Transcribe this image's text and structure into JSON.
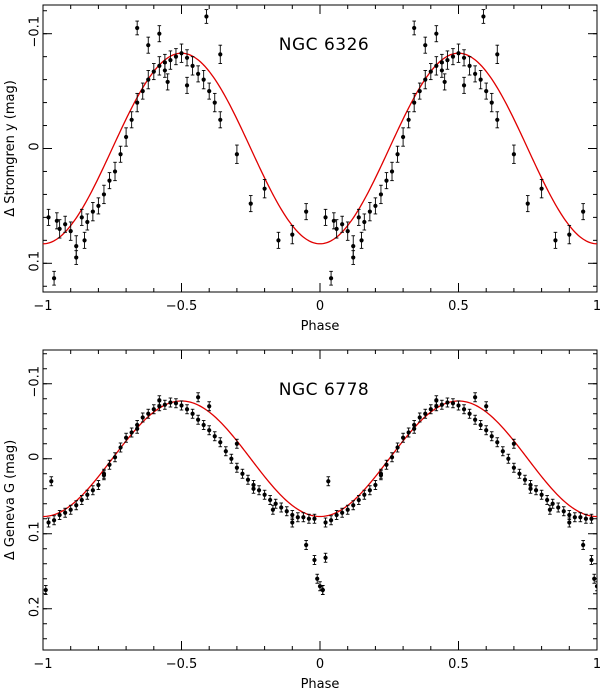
{
  "chart_data": [
    {
      "type": "scatter",
      "title": "NGC 6326",
      "xlabel": "Phase",
      "ylabel": "Δ Stromgren y (mag)",
      "xlim": [
        -1,
        1
      ],
      "ylim": [
        0.125,
        -0.125
      ],
      "xticks": [
        -1,
        -0.5,
        0,
        0.5,
        1
      ],
      "xtick_labels": [
        "−1",
        "−0.5",
        "0",
        "0.5",
        "1"
      ],
      "yticks": [
        -0.1,
        0,
        0.1
      ],
      "ytick_labels": [
        "−0.1",
        "0",
        "0.1"
      ],
      "model": {
        "type": "sinusoid",
        "mean": 0.0,
        "amplitude": 0.083,
        "phase_of_max_brightness": 0.5,
        "color": "#e00000"
      },
      "observations": {
        "x": [
          -0.98,
          -0.96,
          -0.94,
          -0.92,
          -0.9,
          -0.88,
          -0.86,
          -0.84,
          -0.82,
          -0.8,
          -0.78,
          -0.76,
          -0.74,
          -0.72,
          -0.7,
          -0.68,
          -0.66,
          -0.64,
          -0.62,
          -0.6,
          -0.58,
          -0.56,
          -0.54,
          -0.52,
          -0.5,
          -0.48,
          -0.46,
          -0.44,
          -0.42,
          -0.4,
          -0.38,
          -0.36,
          -0.3,
          -0.25,
          -0.2,
          -0.15,
          -0.1,
          -0.05,
          -0.66,
          -0.62,
          -0.58,
          -0.56,
          -0.48,
          -0.41,
          -0.36,
          -0.55,
          -0.95,
          -0.85,
          -0.88
        ],
        "y": [
          0.06,
          0.113,
          0.07,
          0.066,
          0.072,
          0.085,
          0.06,
          0.064,
          0.055,
          0.05,
          0.04,
          0.028,
          0.02,
          0.005,
          -0.01,
          -0.025,
          -0.04,
          -0.05,
          -0.06,
          -0.067,
          -0.072,
          -0.075,
          -0.077,
          -0.08,
          -0.083,
          -0.079,
          -0.072,
          -0.065,
          -0.06,
          -0.05,
          -0.04,
          -0.025,
          0.005,
          0.048,
          0.035,
          0.08,
          0.075,
          0.055,
          -0.105,
          -0.09,
          -0.1,
          -0.068,
          -0.055,
          -0.115,
          -0.082,
          -0.058,
          0.063,
          0.08,
          0.095
        ],
        "yerr": [
          0.007,
          0.006,
          0.008,
          0.007,
          0.008,
          0.009,
          0.007,
          0.007,
          0.008,
          0.007,
          0.008,
          0.007,
          0.008,
          0.007,
          0.008,
          0.007,
          0.008,
          0.007,
          0.008,
          0.007,
          0.008,
          0.007,
          0.008,
          0.007,
          0.008,
          0.007,
          0.008,
          0.007,
          0.008,
          0.007,
          0.008,
          0.007,
          0.008,
          0.007,
          0.008,
          0.007,
          0.008,
          0.007,
          0.006,
          0.007,
          0.007,
          0.006,
          0.007,
          0.006,
          0.008,
          0.007,
          0.007,
          0.007,
          0.006
        ],
        "repeated_at_phase_plus_1": true
      }
    },
    {
      "type": "scatter",
      "title": "NGC 6778",
      "xlabel": "Phase",
      "ylabel": "Δ Geneva G (mag)",
      "xlim": [
        -1,
        1
      ],
      "ylim": [
        0.255,
        -0.145
      ],
      "xticks": [
        -1,
        -0.5,
        0,
        0.5,
        1
      ],
      "xtick_labels": [
        "−1",
        "−0.5",
        "0",
        "0.5",
        "1"
      ],
      "yticks": [
        -0.1,
        0,
        0.1,
        0.2
      ],
      "ytick_labels": [
        "−0.1",
        "0",
        "0.1",
        "0.2"
      ],
      "model": {
        "type": "sinusoid",
        "mean": 0.0,
        "amplitude": 0.077,
        "phase_of_max_brightness": 0.5,
        "color": "#e00000"
      },
      "observations": {
        "x": [
          -0.98,
          -0.96,
          -0.94,
          -0.92,
          -0.9,
          -0.88,
          -0.86,
          -0.84,
          -0.82,
          -0.8,
          -0.78,
          -0.76,
          -0.74,
          -0.72,
          -0.7,
          -0.68,
          -0.66,
          -0.64,
          -0.62,
          -0.6,
          -0.58,
          -0.56,
          -0.54,
          -0.52,
          -0.5,
          -0.48,
          -0.46,
          -0.44,
          -0.42,
          -0.4,
          -0.38,
          -0.36,
          -0.34,
          -0.32,
          -0.3,
          -0.28,
          -0.26,
          -0.24,
          -0.22,
          -0.2,
          -0.18,
          -0.16,
          -0.14,
          -0.12,
          -0.1,
          -0.08,
          -0.06,
          -0.04,
          -0.02,
          -0.97,
          -0.78,
          -0.66,
          -0.58,
          -0.44,
          -0.4,
          -0.3,
          -0.24,
          -0.17,
          -0.1,
          -0.05,
          -0.02,
          -0.01,
          0.0,
          0.01,
          0.02,
          -0.99
        ],
        "y": [
          0.085,
          0.082,
          0.075,
          0.072,
          0.068,
          0.062,
          0.055,
          0.048,
          0.042,
          0.035,
          0.022,
          0.008,
          -0.002,
          -0.015,
          -0.028,
          -0.035,
          -0.045,
          -0.055,
          -0.06,
          -0.066,
          -0.07,
          -0.072,
          -0.075,
          -0.074,
          -0.071,
          -0.066,
          -0.06,
          -0.052,
          -0.045,
          -0.038,
          -0.03,
          -0.022,
          -0.01,
          0.0,
          0.012,
          0.02,
          0.028,
          0.035,
          0.042,
          0.048,
          0.055,
          0.06,
          0.065,
          0.07,
          0.075,
          0.078,
          0.078,
          0.08,
          0.08,
          0.03,
          0.02,
          -0.04,
          -0.078,
          -0.082,
          -0.07,
          -0.02,
          0.04,
          0.068,
          0.085,
          0.115,
          0.135,
          0.16,
          0.17,
          0.175,
          0.132,
          0.175
        ],
        "yerr": [
          0.006,
          0.006,
          0.006,
          0.006,
          0.006,
          0.006,
          0.006,
          0.006,
          0.006,
          0.006,
          0.006,
          0.006,
          0.006,
          0.006,
          0.006,
          0.006,
          0.006,
          0.006,
          0.006,
          0.006,
          0.006,
          0.006,
          0.006,
          0.006,
          0.006,
          0.006,
          0.006,
          0.006,
          0.006,
          0.006,
          0.006,
          0.006,
          0.006,
          0.006,
          0.006,
          0.006,
          0.006,
          0.006,
          0.006,
          0.006,
          0.006,
          0.006,
          0.006,
          0.006,
          0.006,
          0.006,
          0.006,
          0.006,
          0.006,
          0.006,
          0.006,
          0.006,
          0.006,
          0.006,
          0.006,
          0.006,
          0.006,
          0.006,
          0.006,
          0.006,
          0.006,
          0.006,
          0.006,
          0.006,
          0.006,
          0.006
        ],
        "repeated_at_phase_plus_1": true
      }
    }
  ]
}
